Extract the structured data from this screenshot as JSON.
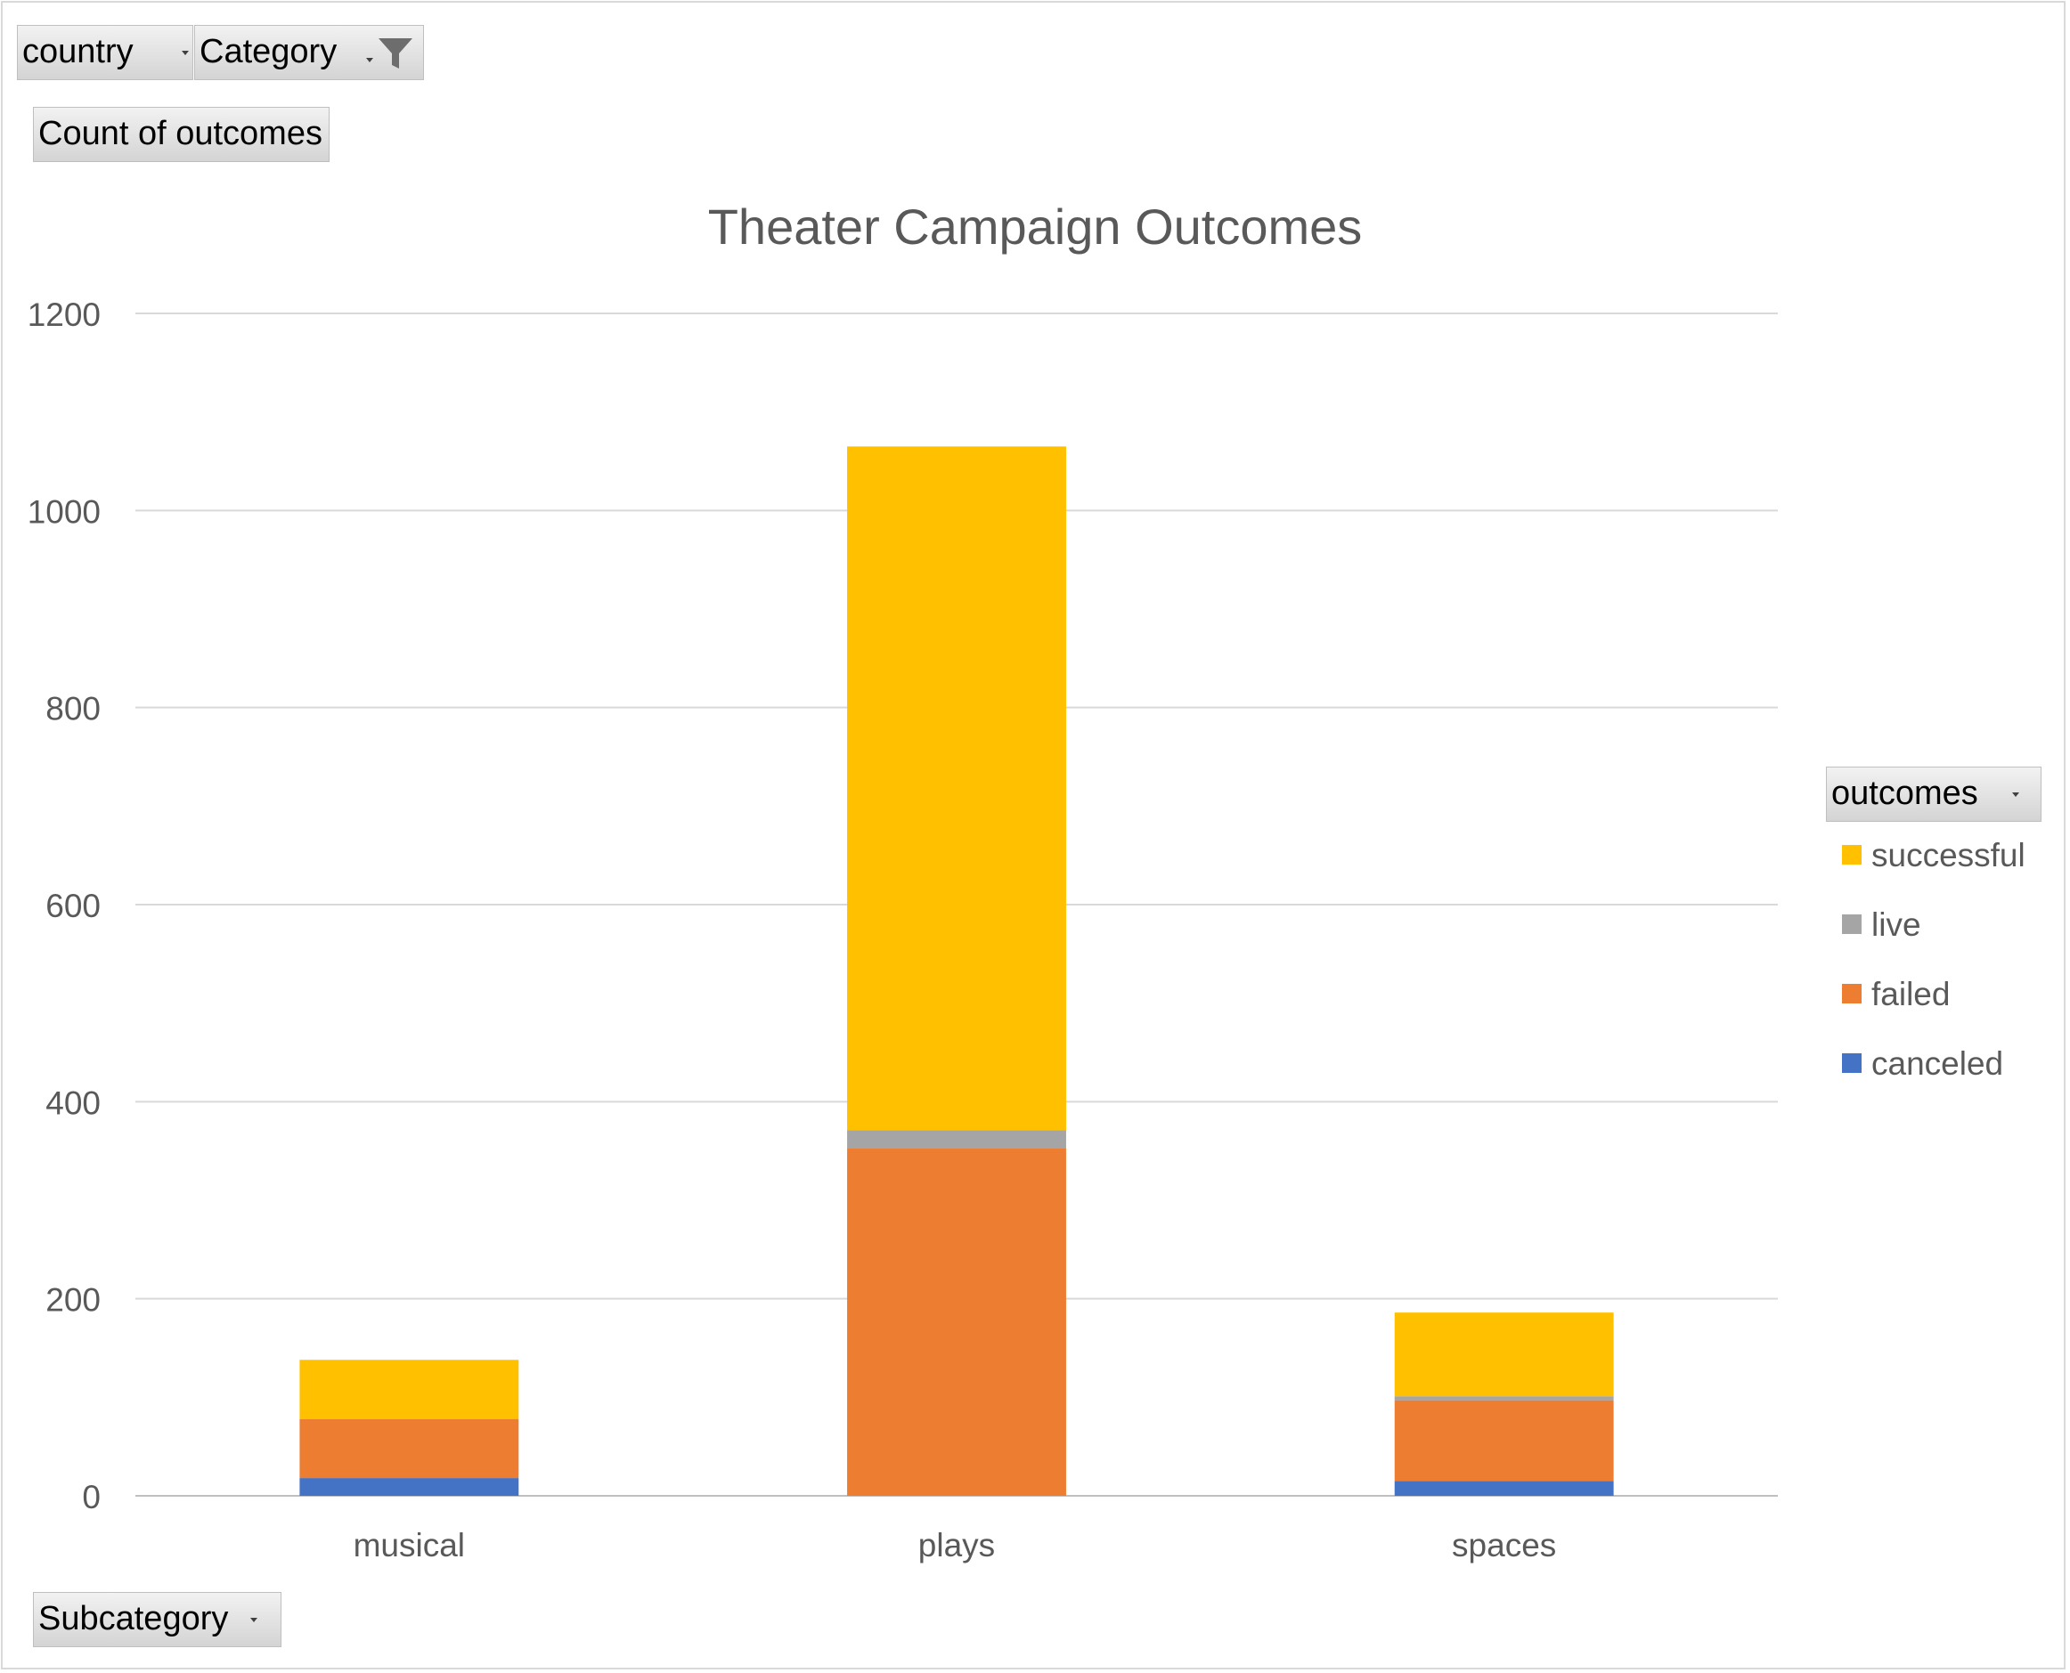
{
  "filters": {
    "country": {
      "label": "country"
    },
    "category": {
      "label": "Category"
    }
  },
  "value_field": {
    "label": "Count of outcomes"
  },
  "legend_field": {
    "label": "outcomes"
  },
  "axis_field": {
    "label": "Subcategory"
  },
  "icons": {
    "dropdown": "chevron-down-icon",
    "filter": "funnel-icon"
  },
  "chart_data": {
    "type": "bar",
    "stacked": true,
    "title": "Theater Campaign Outcomes",
    "xlabel": "",
    "ylabel": "",
    "categories": [
      "musical",
      "plays",
      "spaces"
    ],
    "series": [
      {
        "name": "canceled",
        "color": "#4472C4",
        "values": [
          18,
          0,
          15
        ]
      },
      {
        "name": "failed",
        "color": "#ED7D31",
        "values": [
          60,
          353,
          82
        ]
      },
      {
        "name": "live",
        "color": "#A5A5A5",
        "values": [
          0,
          18,
          4
        ]
      },
      {
        "name": "successful",
        "color": "#FFC000",
        "values": [
          60,
          694,
          85
        ]
      }
    ],
    "legend_order": [
      "successful",
      "live",
      "failed",
      "canceled"
    ],
    "ylim": [
      0,
      1200
    ],
    "yticks": [
      0,
      200,
      400,
      600,
      800,
      1000,
      1200
    ],
    "grid": true,
    "legend_position": "right"
  }
}
